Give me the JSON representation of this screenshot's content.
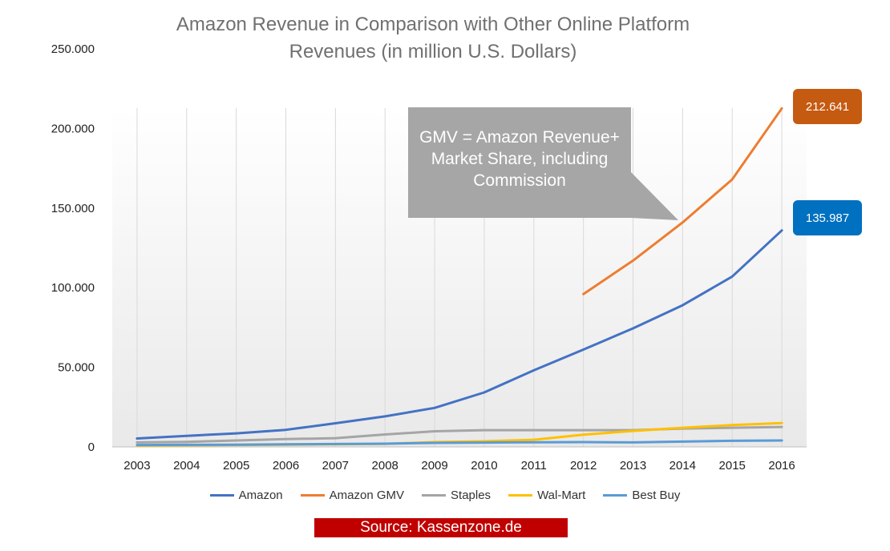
{
  "chart_data": {
    "type": "line",
    "title_lines": [
      "Amazon Revenue in Comparison with Other Online Platform",
      "Revenues (in million U.S. Dollars)"
    ],
    "categories": [
      "2003",
      "2004",
      "2005",
      "2006",
      "2007",
      "2008",
      "2009",
      "2010",
      "2011",
      "2012",
      "2013",
      "2014",
      "2015",
      "2016"
    ],
    "y_ticks": [
      {
        "value": 0,
        "label": "0"
      },
      {
        "value": 50000,
        "label": "50.000"
      },
      {
        "value": 100000,
        "label": "100.000"
      },
      {
        "value": 150000,
        "label": "150.000"
      },
      {
        "value": 200000,
        "label": "200.000"
      },
      {
        "value": 250000,
        "label": "250.000"
      }
    ],
    "ylim": [
      0,
      250000
    ],
    "series": [
      {
        "name": "Amazon",
        "color": "#4472c4",
        "values": [
          5264,
          6921,
          8490,
          10711,
          14835,
          19166,
          24509,
          34204,
          48077,
          61093,
          74452,
          88988,
          107006,
          135987
        ]
      },
      {
        "name": "Amazon GMV",
        "color": "#ed7d31",
        "values": [
          null,
          null,
          null,
          null,
          null,
          null,
          null,
          null,
          null,
          96000,
          117000,
          141000,
          168000,
          212641
        ]
      },
      {
        "name": "Staples",
        "color": "#a5a5a5",
        "values": [
          2800,
          3100,
          4000,
          4900,
          5500,
          7800,
          9800,
          10500,
          10500,
          10500,
          10500,
          11500,
          12000,
          12500
        ]
      },
      {
        "name": "Wal-Mart",
        "color": "#ffc000",
        "values": [
          800,
          1000,
          1200,
          1400,
          1600,
          1900,
          3000,
          3500,
          4500,
          7700,
          10000,
          12000,
          13700,
          15000
        ]
      },
      {
        "name": "Best Buy",
        "color": "#5b9bd5",
        "values": [
          1200,
          1300,
          1400,
          1600,
          1800,
          2000,
          2500,
          2700,
          2900,
          3000,
          2800,
          3300,
          3800,
          4000
        ]
      }
    ],
    "callout": {
      "lines": [
        "GMV = Amazon Revenue+",
        "Market Share, including",
        "Commission"
      ],
      "points_to_year": "2014"
    },
    "badges": [
      {
        "text": "212.641",
        "series": "Amazon GMV",
        "color": "#c55a11"
      },
      {
        "text": "135.987",
        "series": "Amazon",
        "color": "#0070c0"
      }
    ]
  },
  "source": {
    "label": "Source: Kassenzone.de",
    "color": "#c00000"
  }
}
